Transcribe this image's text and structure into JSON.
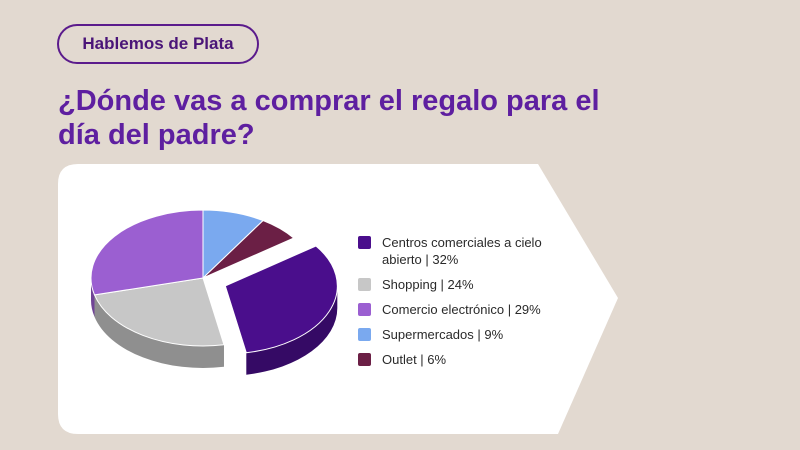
{
  "header": {
    "badge": "Hablemos de Plata",
    "title": "¿Dónde vas a comprar el regalo para el día del padre?"
  },
  "chart_data": {
    "type": "pie",
    "title": "¿Dónde vas a comprar el regalo para el día del padre?",
    "legend_position": "right",
    "slices": [
      {
        "label": "Centros comerciales a cielo abierto",
        "legend_text": "Centros comerciales a cielo abierto | 32%",
        "value": 32,
        "color": "#4a0e8c",
        "exploded": true
      },
      {
        "label": "Shopping",
        "legend_text": "Shopping | 24%",
        "value": 24,
        "color": "#c7c7c7"
      },
      {
        "label": "Comercio electrónico",
        "legend_text": "Comercio electrónico | 29%",
        "value": 29,
        "color": "#9b5fd1"
      },
      {
        "label": "Supermercados",
        "legend_text": "Supermercados | 9%",
        "value": 9,
        "color": "#7aa9ef"
      },
      {
        "label": "Outlet",
        "legend_text": "Outlet | 6%",
        "value": 6,
        "color": "#6b1f45"
      }
    ]
  }
}
